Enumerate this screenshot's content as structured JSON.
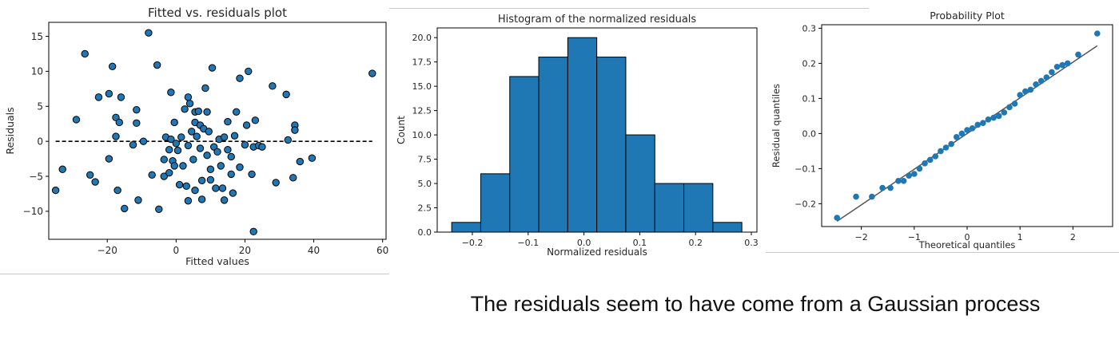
{
  "caption": "The residuals seem to have come from a Gaussian process",
  "chart_data": [
    {
      "type": "scatter",
      "title": "Fitted vs. residuals plot",
      "xlabel": "Fitted values",
      "ylabel": "Residuals",
      "xlim": [
        -37,
        61
      ],
      "ylim": [
        -14,
        17
      ],
      "xticks": [
        -20,
        0,
        20,
        40,
        60
      ],
      "yticks": [
        -10,
        -5,
        0,
        5,
        10,
        15
      ],
      "xtick_labels": [
        "−20",
        "0",
        "20",
        "40",
        "60"
      ],
      "ytick_labels": [
        "−10",
        "−5",
        "0",
        "5",
        "10",
        "15"
      ],
      "grid": false,
      "marker_color": "#1f77b4",
      "reference_line": {
        "y": 0,
        "x_from": -35,
        "x_to": 57,
        "style": "dashed",
        "color": "#000000"
      },
      "points": [
        [
          -35,
          -7
        ],
        [
          -33,
          -4
        ],
        [
          -29,
          3.1
        ],
        [
          -26.5,
          12.5
        ],
        [
          -25,
          -4.8
        ],
        [
          -23.5,
          -5.8
        ],
        [
          -22.5,
          6.3
        ],
        [
          -19.5,
          6.8
        ],
        [
          -19.5,
          -2.5
        ],
        [
          -18.5,
          10.7
        ],
        [
          -17.5,
          3.4
        ],
        [
          -17.5,
          0.7
        ],
        [
          -17,
          -7
        ],
        [
          -16.5,
          2.7
        ],
        [
          -16,
          6.3
        ],
        [
          -15,
          -9.6
        ],
        [
          -12.5,
          -0.5
        ],
        [
          -11.5,
          4.5
        ],
        [
          -11.5,
          2.6
        ],
        [
          -11,
          -8.4
        ],
        [
          -9.5,
          0
        ],
        [
          -8,
          15.5
        ],
        [
          -7,
          -4.8
        ],
        [
          -5.5,
          10.9
        ],
        [
          -5,
          -9.7
        ],
        [
          -3.5,
          -5
        ],
        [
          -3.5,
          -2.6
        ],
        [
          -3,
          0.6
        ],
        [
          -2,
          -4.5
        ],
        [
          -2,
          -1.2
        ],
        [
          -1.5,
          7
        ],
        [
          -1.5,
          0.3
        ],
        [
          -1,
          -2.8
        ],
        [
          -0.5,
          2.7
        ],
        [
          -0.5,
          -3.5
        ],
        [
          0,
          -0.3
        ],
        [
          0.5,
          -1.3
        ],
        [
          1,
          -6.2
        ],
        [
          1.5,
          0.6
        ],
        [
          2,
          -3.5
        ],
        [
          2.5,
          4.6
        ],
        [
          3,
          -6.4
        ],
        [
          3.5,
          6.3
        ],
        [
          3.5,
          -0.6
        ],
        [
          3.5,
          -8.5
        ],
        [
          4,
          5.4
        ],
        [
          4.5,
          1.4
        ],
        [
          5,
          -2.6
        ],
        [
          5.5,
          4.2
        ],
        [
          5.5,
          2.7
        ],
        [
          5.5,
          -7
        ],
        [
          6,
          0.7
        ],
        [
          6.5,
          4.3
        ],
        [
          7,
          2.3
        ],
        [
          7,
          -1
        ],
        [
          7.5,
          -5.6
        ],
        [
          7.5,
          -8.3
        ],
        [
          8,
          1.8
        ],
        [
          8.5,
          7.6
        ],
        [
          9,
          4.2
        ],
        [
          9,
          -2
        ],
        [
          9.5,
          1.4
        ],
        [
          10,
          -5.5
        ],
        [
          10,
          -4
        ],
        [
          10.5,
          10.5
        ],
        [
          11,
          -0.8
        ],
        [
          11.5,
          -6.7
        ],
        [
          12,
          -1.5
        ],
        [
          12.5,
          0.3
        ],
        [
          13,
          -3.5
        ],
        [
          13.5,
          -6.7
        ],
        [
          14,
          -8.4
        ],
        [
          14,
          0.6
        ],
        [
          15,
          2.8
        ],
        [
          15,
          -1.2
        ],
        [
          16,
          -4.7
        ],
        [
          16,
          -2.2
        ],
        [
          16.5,
          -7.4
        ],
        [
          17,
          0.8
        ],
        [
          17.5,
          4.2
        ],
        [
          18.5,
          -3.7
        ],
        [
          18.5,
          9
        ],
        [
          20,
          -0.5
        ],
        [
          20.5,
          2.3
        ],
        [
          21,
          10
        ],
        [
          22,
          -4.7
        ],
        [
          22.5,
          -0.8
        ],
        [
          22.5,
          -12.9
        ],
        [
          23,
          3
        ],
        [
          24,
          -0.6
        ],
        [
          25,
          -0.8
        ],
        [
          28,
          7.9
        ],
        [
          29,
          -5.9
        ],
        [
          32,
          6.7
        ],
        [
          32.5,
          0.2
        ],
        [
          34,
          -5.2
        ],
        [
          34.5,
          2.3
        ],
        [
          34.5,
          1.6
        ],
        [
          36,
          -2.9
        ],
        [
          39.5,
          -2.4
        ],
        [
          57,
          9.7
        ]
      ]
    },
    {
      "type": "bar",
      "title": "Histogram of the normalized residuals",
      "xlabel": "Normalized residuals",
      "ylabel": "Count",
      "xlim": [
        -0.263,
        0.31
      ],
      "ylim": [
        0,
        21
      ],
      "xticks": [
        -0.2,
        -0.1,
        0.0,
        0.1,
        0.2,
        0.3
      ],
      "yticks": [
        0,
        2.5,
        5,
        7.5,
        10,
        12.5,
        15,
        17.5,
        20
      ],
      "xtick_labels": [
        "−0.2",
        "−0.1",
        "0.0",
        "0.1",
        "0.2",
        "0.3"
      ],
      "ytick_labels": [
        "0.0",
        "2.5",
        "5.0",
        "7.5",
        "10.0",
        "12.5",
        "15.0",
        "17.5",
        "20.0"
      ],
      "grid": false,
      "bar_color": "#1f77b4",
      "bin_edges": [
        -0.237,
        -0.185,
        -0.133,
        -0.081,
        -0.029,
        0.023,
        0.075,
        0.127,
        0.179,
        0.231,
        0.283
      ],
      "counts": [
        1,
        6,
        16,
        18,
        20,
        18,
        10,
        5,
        5,
        1
      ]
    },
    {
      "type": "scatter",
      "title": "Probability Plot",
      "xlabel": "Theoretical quantiles",
      "ylabel": "Residual quantiles",
      "xlim": [
        -2.75,
        2.75
      ],
      "ylim": [
        -0.265,
        0.31
      ],
      "xticks": [
        -2,
        -1,
        0,
        1,
        2
      ],
      "yticks": [
        -0.2,
        -0.1,
        0.0,
        0.1,
        0.2,
        0.3
      ],
      "xtick_labels": [
        "−2",
        "−1",
        "0",
        "1",
        "2"
      ],
      "ytick_labels": [
        "−0.2",
        "−0.1",
        "0.0",
        "0.1",
        "0.2",
        "0.3"
      ],
      "grid": false,
      "marker_color": "#1f77b4",
      "fit_line": {
        "x": [
          -2.46,
          2.46
        ],
        "y": [
          -0.25,
          0.25
        ],
        "color": "#555555"
      },
      "points": [
        [
          -2.46,
          -0.24
        ],
        [
          -2.1,
          -0.18
        ],
        [
          -1.8,
          -0.18
        ],
        [
          -1.6,
          -0.155
        ],
        [
          -1.45,
          -0.155
        ],
        [
          -1.3,
          -0.135
        ],
        [
          -1.2,
          -0.135
        ],
        [
          -1.1,
          -0.12
        ],
        [
          -1.0,
          -0.115
        ],
        [
          -0.9,
          -0.1
        ],
        [
          -0.8,
          -0.085
        ],
        [
          -0.7,
          -0.075
        ],
        [
          -0.6,
          -0.065
        ],
        [
          -0.5,
          -0.05
        ],
        [
          -0.4,
          -0.04
        ],
        [
          -0.3,
          -0.03
        ],
        [
          -0.2,
          -0.01
        ],
        [
          -0.1,
          0.0
        ],
        [
          0.0,
          0.01
        ],
        [
          0.1,
          0.015
        ],
        [
          0.2,
          0.025
        ],
        [
          0.3,
          0.03
        ],
        [
          0.4,
          0.04
        ],
        [
          0.5,
          0.045
        ],
        [
          0.6,
          0.05
        ],
        [
          0.7,
          0.06
        ],
        [
          0.8,
          0.075
        ],
        [
          0.9,
          0.085
        ],
        [
          1.0,
          0.11
        ],
        [
          1.1,
          0.12
        ],
        [
          1.2,
          0.125
        ],
        [
          1.3,
          0.14
        ],
        [
          1.4,
          0.15
        ],
        [
          1.5,
          0.16
        ],
        [
          1.6,
          0.175
        ],
        [
          1.7,
          0.19
        ],
        [
          1.8,
          0.195
        ],
        [
          1.9,
          0.2
        ],
        [
          2.1,
          0.225
        ],
        [
          2.46,
          0.285
        ]
      ]
    }
  ]
}
